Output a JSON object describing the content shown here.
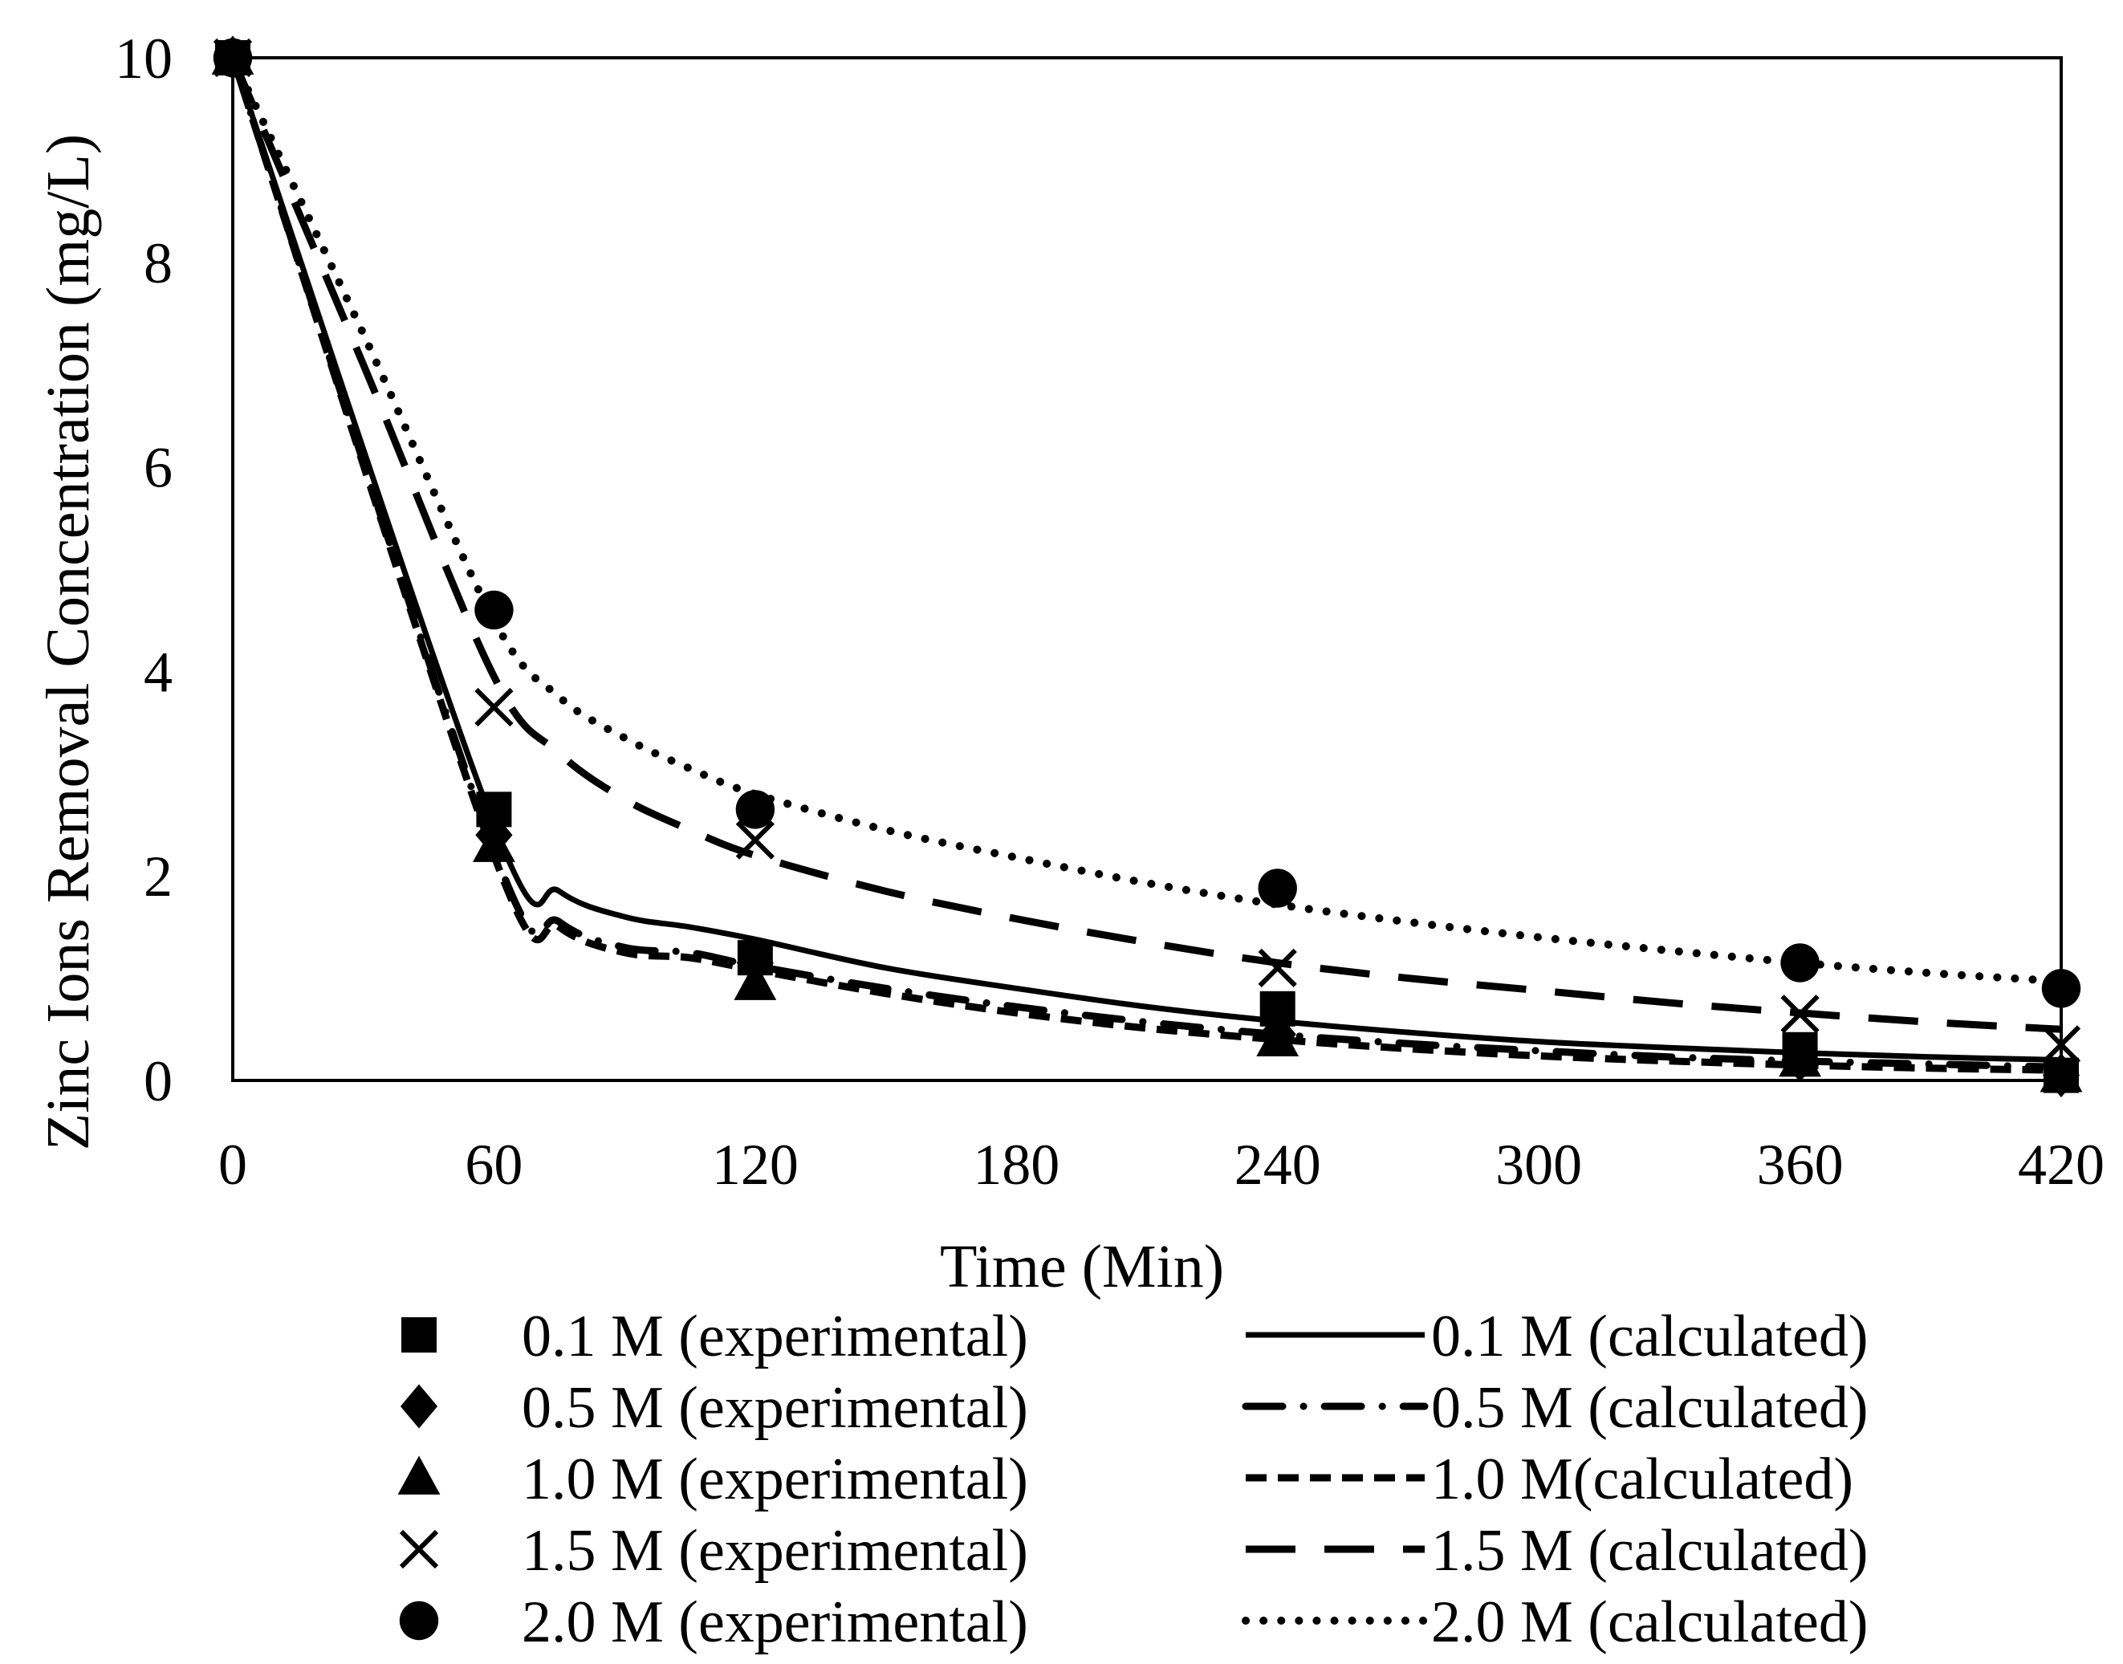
{
  "chart_data": {
    "type": "line",
    "title": "",
    "xlabel": "Time (Min)",
    "ylabel": "Zinc Ions Removal Concentration (mg/L)",
    "xlim": [
      0,
      420
    ],
    "ylim": [
      0,
      10
    ],
    "xticks": [
      0,
      60,
      120,
      180,
      240,
      300,
      360,
      420
    ],
    "yticks": [
      0,
      2,
      4,
      6,
      8,
      10
    ],
    "grid": false,
    "legend_position": "bottom",
    "experimental": [
      {
        "name": "0.1 M (experimental)",
        "marker": "square",
        "x": [
          0,
          60,
          120,
          240,
          360,
          420
        ],
        "y": [
          10,
          2.65,
          1.2,
          0.7,
          0.3,
          0.05
        ]
      },
      {
        "name": "0.5 M (experimental)",
        "marker": "diamond",
        "x": [
          0,
          60,
          120,
          240,
          360,
          420
        ],
        "y": [
          10,
          2.4,
          1.15,
          0.45,
          0.2,
          0.05
        ]
      },
      {
        "name": "1.0 M (experimental)",
        "marker": "triangle",
        "x": [
          0,
          60,
          120,
          240,
          360,
          420
        ],
        "y": [
          10,
          2.3,
          0.95,
          0.4,
          0.2,
          0.05
        ]
      },
      {
        "name": "1.5 M (experimental)",
        "marker": "cross",
        "x": [
          0,
          60,
          120,
          240,
          360,
          420
        ],
        "y": [
          10,
          3.65,
          2.35,
          1.1,
          0.65,
          0.35
        ]
      },
      {
        "name": "2.0 M (experimental)",
        "marker": "circle",
        "x": [
          0,
          60,
          120,
          240,
          360,
          420
        ],
        "y": [
          10,
          4.6,
          2.65,
          1.88,
          1.15,
          0.9
        ]
      }
    ],
    "calculated": [
      {
        "name": "0.1 M (calculated)",
        "dash": "solid",
        "x": [
          0,
          60,
          75,
          90,
          105,
          120,
          150,
          180,
          210,
          240,
          270,
          300,
          330,
          360,
          390,
          420
        ],
        "y": [
          10,
          2.5,
          1.85,
          1.6,
          1.5,
          1.38,
          1.1,
          0.9,
          0.72,
          0.58,
          0.47,
          0.38,
          0.32,
          0.27,
          0.23,
          0.2
        ]
      },
      {
        "name": "0.5 M (calculated)",
        "dash": "dashdot",
        "x": [
          0,
          60,
          75,
          90,
          105,
          120,
          150,
          180,
          210,
          240,
          270,
          300,
          330,
          360,
          390,
          420
        ],
        "y": [
          10,
          2.25,
          1.55,
          1.3,
          1.25,
          1.12,
          0.9,
          0.72,
          0.57,
          0.45,
          0.36,
          0.29,
          0.23,
          0.19,
          0.16,
          0.13
        ]
      },
      {
        "name": "1.0 M(calculated)",
        "dash": "shortdash",
        "x": [
          0,
          60,
          75,
          90,
          105,
          120,
          150,
          180,
          210,
          240,
          270,
          300,
          330,
          360,
          390,
          420
        ],
        "y": [
          10,
          2.2,
          1.5,
          1.25,
          1.2,
          1.08,
          0.85,
          0.66,
          0.51,
          0.4,
          0.31,
          0.24,
          0.19,
          0.15,
          0.12,
          0.1
        ]
      },
      {
        "name": "1.5 M (calculated)",
        "dash": "longdash",
        "x": [
          0,
          30,
          60,
          75,
          90,
          105,
          120,
          150,
          180,
          210,
          240,
          270,
          300,
          330,
          360,
          390,
          420
        ],
        "y": [
          10,
          7.0,
          3.95,
          3.2,
          2.75,
          2.45,
          2.2,
          1.85,
          1.58,
          1.35,
          1.15,
          1.0,
          0.88,
          0.76,
          0.66,
          0.57,
          0.5
        ]
      },
      {
        "name": "2.0 M (calculated)",
        "dash": "dotted",
        "x": [
          0,
          30,
          60,
          75,
          90,
          105,
          120,
          150,
          180,
          210,
          240,
          270,
          300,
          330,
          360,
          390,
          420
        ],
        "y": [
          10,
          7.3,
          4.5,
          3.75,
          3.35,
          3.05,
          2.8,
          2.45,
          2.18,
          1.93,
          1.72,
          1.55,
          1.4,
          1.27,
          1.15,
          1.05,
          0.97
        ]
      }
    ]
  }
}
